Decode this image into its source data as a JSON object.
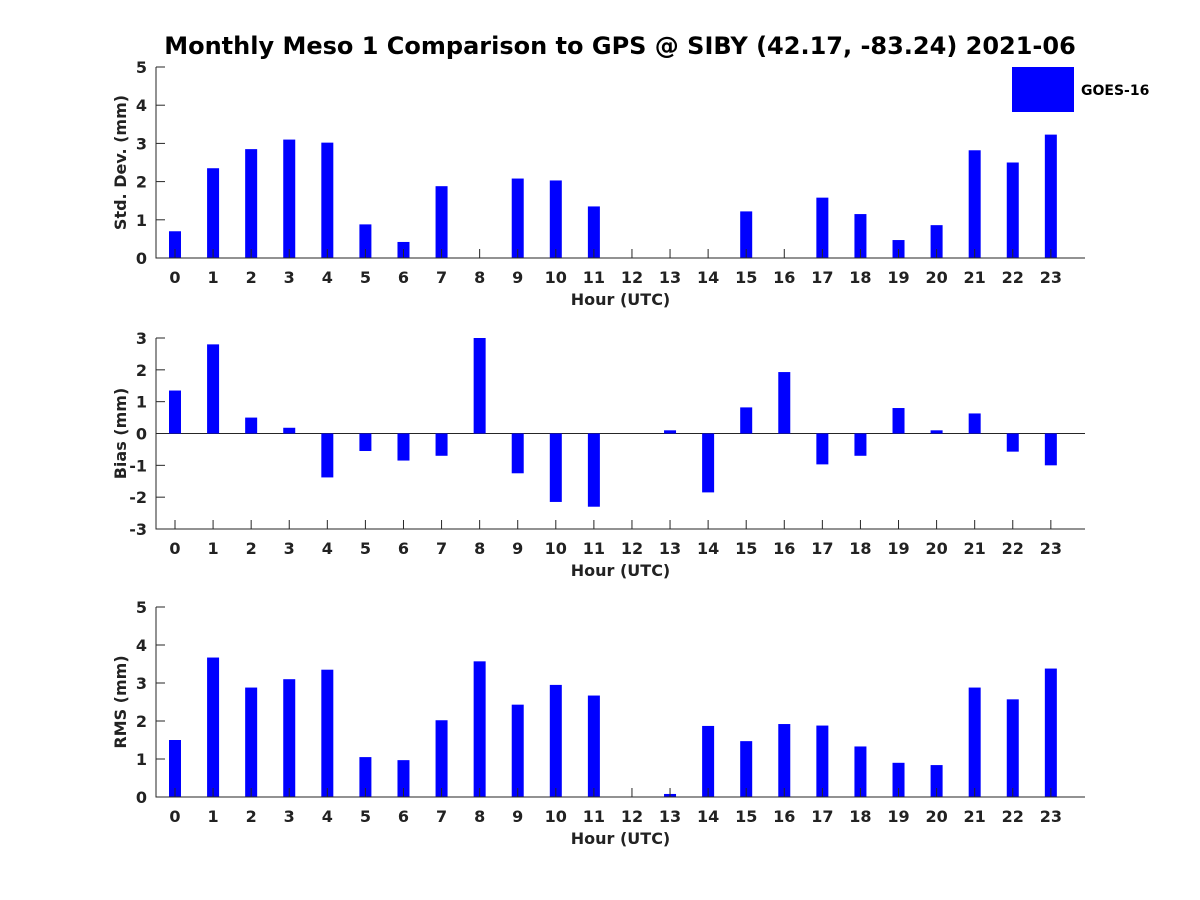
{
  "figure": {
    "title": "Monthly Meso 1 Comparison to GPS @ SIBY (42.17, -83.24) 2021-06"
  },
  "legend": {
    "label": "GOES-16",
    "color": "#0000ff",
    "placement": "top-right"
  },
  "chart_data": [
    {
      "type": "bar",
      "name": "std-dev",
      "xlabel": "Hour (UTC)",
      "ylabel": "Std. Dev. (mm)",
      "ylim": [
        0,
        5
      ],
      "yticks": [
        "0",
        "1",
        "2",
        "3",
        "4",
        "5"
      ],
      "categories": [
        "0",
        "1",
        "2",
        "3",
        "4",
        "5",
        "6",
        "7",
        "8",
        "9",
        "10",
        "11",
        "12",
        "13",
        "14",
        "15",
        "16",
        "17",
        "18",
        "19",
        "20",
        "21",
        "22",
        "23"
      ],
      "values": [
        0.7,
        2.35,
        2.85,
        3.1,
        3.02,
        0.88,
        0.42,
        1.88,
        0,
        2.08,
        2.03,
        1.35,
        0,
        0,
        0,
        1.22,
        0,
        1.58,
        1.15,
        0.47,
        0.86,
        2.82,
        2.5,
        3.23
      ],
      "color": "#0000ff"
    },
    {
      "type": "bar",
      "name": "bias",
      "xlabel": "Hour (UTC)",
      "ylabel": "Bias (mm)",
      "ylim": [
        -3,
        3
      ],
      "yticks": [
        "-3",
        "-2",
        "-1",
        "0",
        "1",
        "2",
        "3"
      ],
      "categories": [
        "0",
        "1",
        "2",
        "3",
        "4",
        "5",
        "6",
        "7",
        "8",
        "9",
        "10",
        "11",
        "12",
        "13",
        "14",
        "15",
        "16",
        "17",
        "18",
        "19",
        "20",
        "21",
        "22",
        "23"
      ],
      "values": [
        1.35,
        2.8,
        0.5,
        0.18,
        -1.38,
        -0.55,
        -0.85,
        -0.7,
        3.0,
        -1.25,
        -2.15,
        -2.3,
        0,
        0.1,
        -1.85,
        0.82,
        1.93,
        -0.97,
        -0.7,
        0.8,
        0.1,
        0.63,
        -0.57,
        -1.0
      ],
      "color": "#0000ff"
    },
    {
      "type": "bar",
      "name": "rms",
      "xlabel": "Hour (UTC)",
      "ylabel": "RMS (mm)",
      "ylim": [
        0,
        5
      ],
      "yticks": [
        "0",
        "1",
        "2",
        "3",
        "4",
        "5"
      ],
      "categories": [
        "0",
        "1",
        "2",
        "3",
        "4",
        "5",
        "6",
        "7",
        "8",
        "9",
        "10",
        "11",
        "12",
        "13",
        "14",
        "15",
        "16",
        "17",
        "18",
        "19",
        "20",
        "21",
        "22",
        "23"
      ],
      "values": [
        1.5,
        3.67,
        2.88,
        3.1,
        3.35,
        1.05,
        0.97,
        2.02,
        3.57,
        2.43,
        2.95,
        2.67,
        0,
        0.08,
        1.87,
        1.47,
        1.92,
        1.88,
        1.33,
        0.9,
        0.84,
        2.88,
        2.57,
        3.38
      ],
      "color": "#0000ff"
    }
  ]
}
